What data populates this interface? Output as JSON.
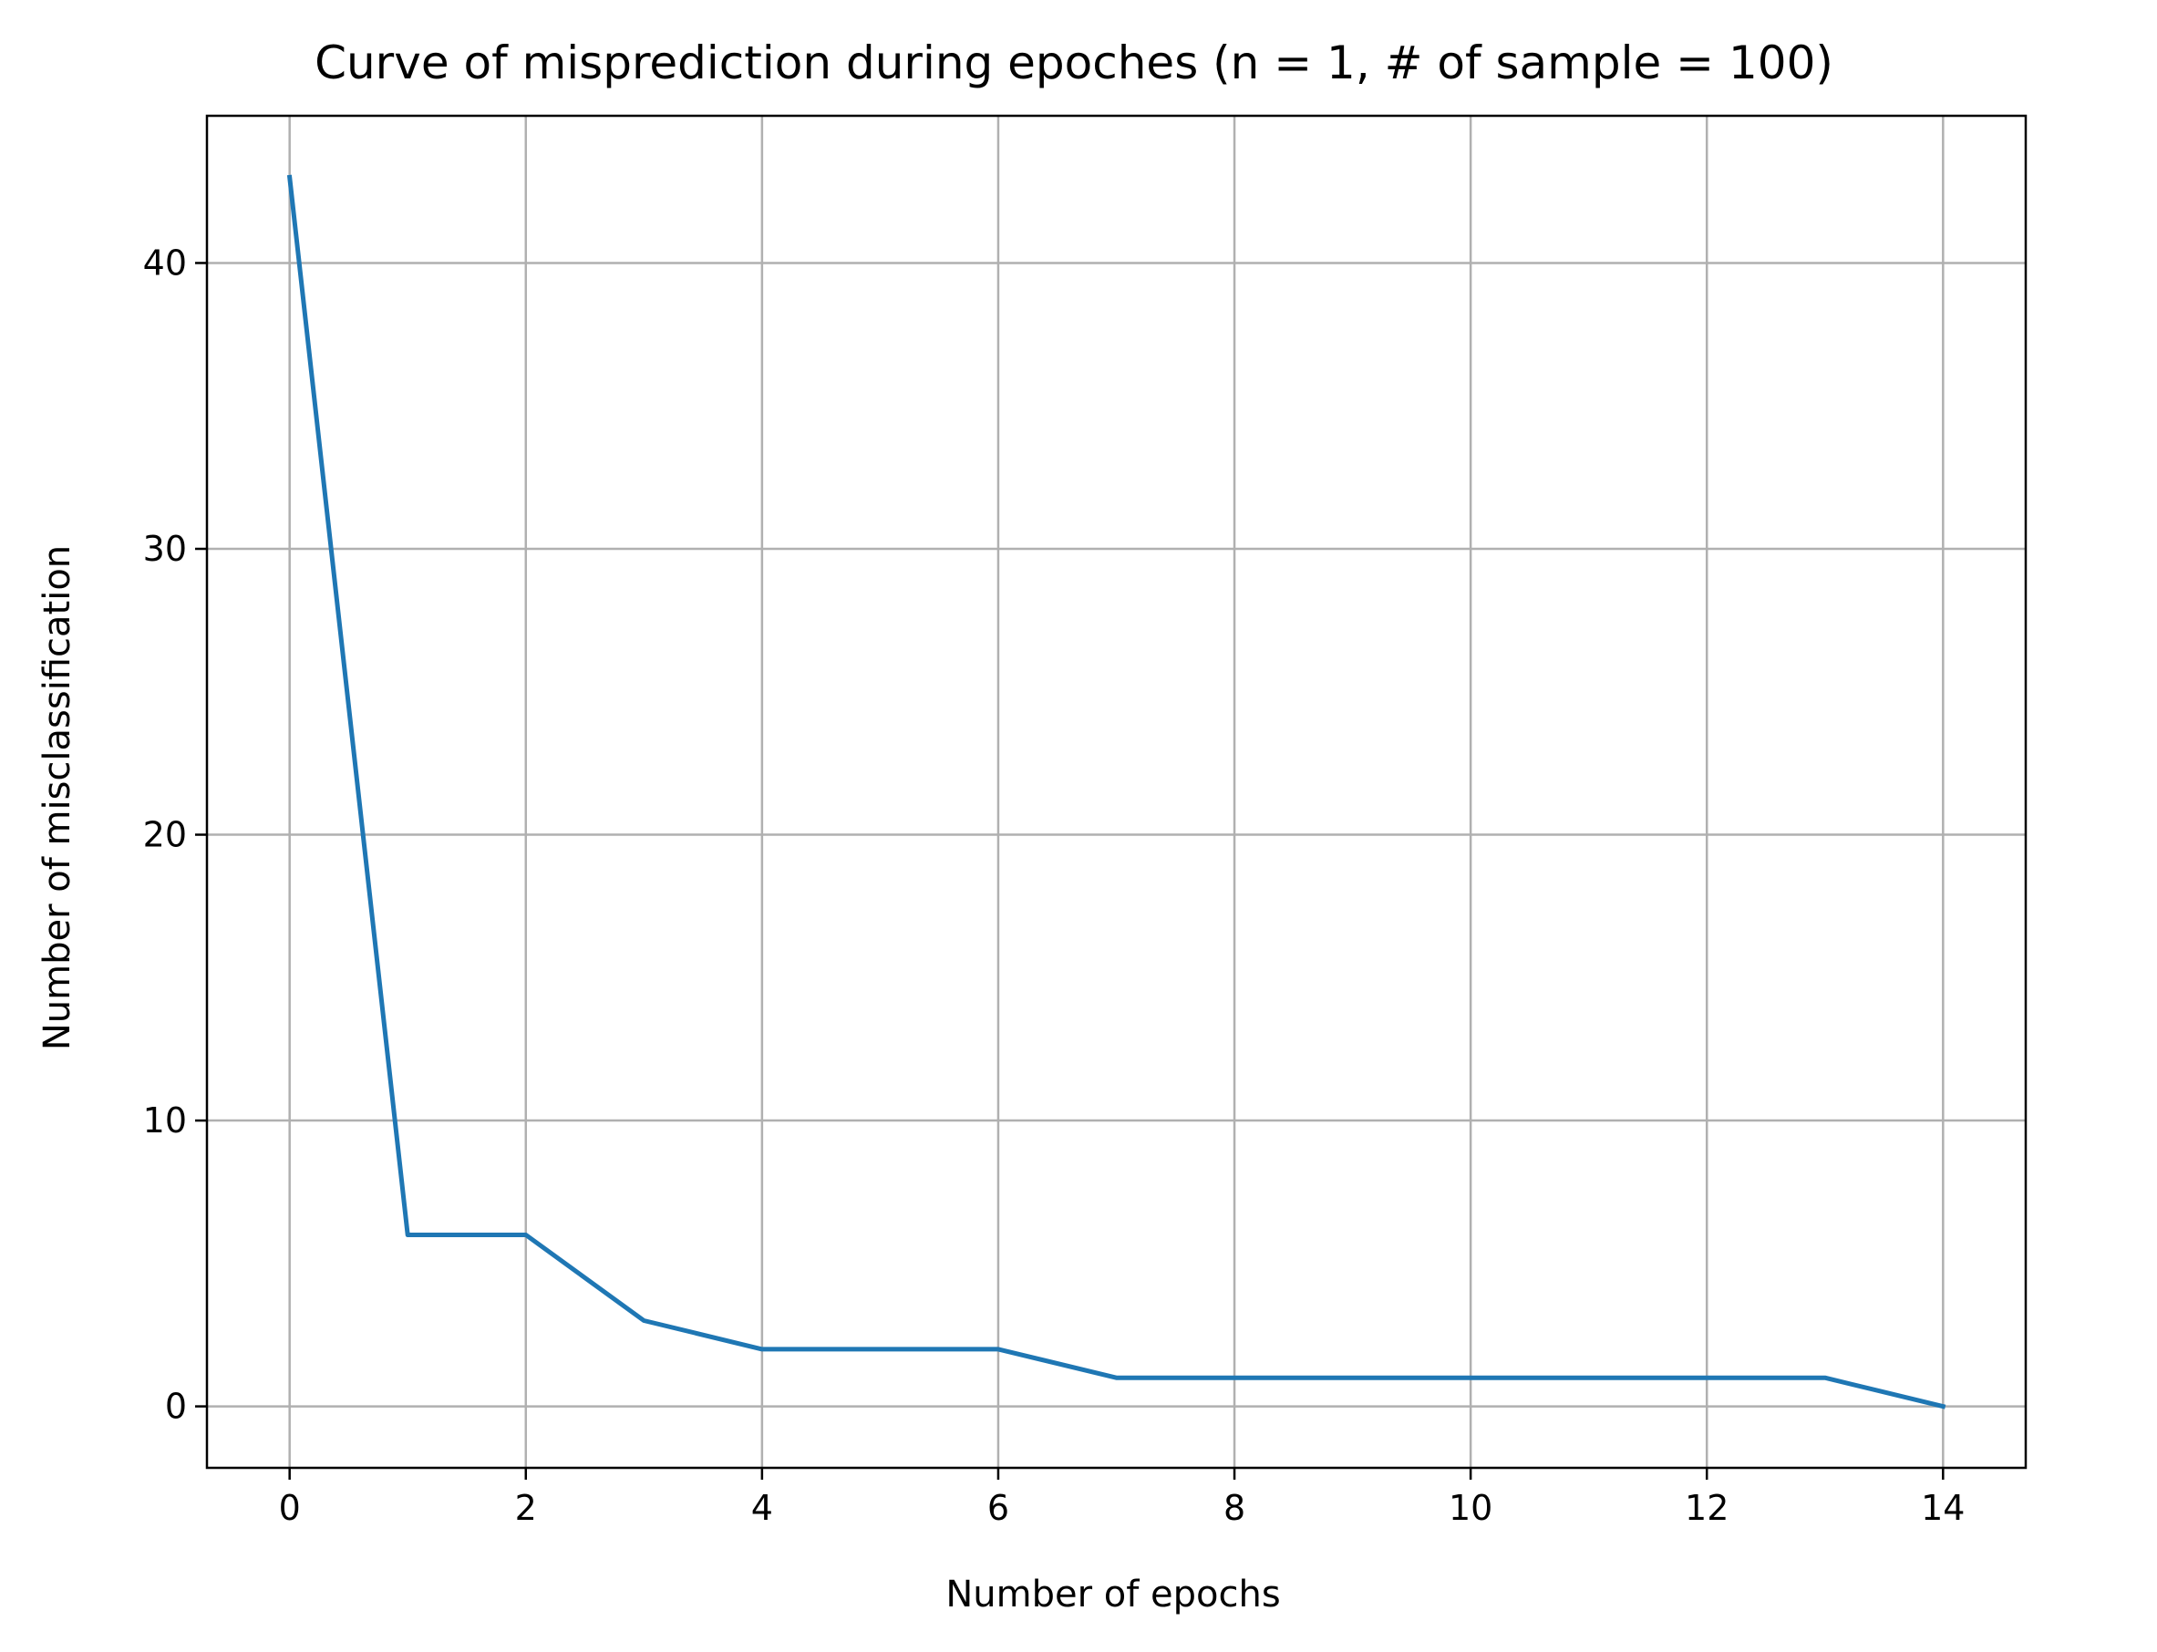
{
  "chart_data": {
    "type": "line",
    "title": "Curve of misprediction during epoches (n = 1, # of sample = 100)",
    "xlabel": "Number of epochs",
    "ylabel": "Number of misclassification",
    "xlim": [
      -0.7,
      14.7
    ],
    "ylim": [
      -2.15,
      45.15
    ],
    "xticks": [
      0,
      2,
      4,
      6,
      8,
      10,
      12,
      14
    ],
    "yticks": [
      0,
      10,
      20,
      30,
      40
    ],
    "grid": true,
    "series": [
      {
        "color": "#1f77b4",
        "x": [
          0,
          1,
          2,
          3,
          4,
          5,
          6,
          7,
          8,
          9,
          10,
          11,
          12,
          13,
          14
        ],
        "y": [
          43,
          6,
          6,
          3,
          2,
          2,
          2,
          1,
          1,
          1,
          1,
          1,
          1,
          1,
          0
        ]
      }
    ]
  },
  "colors": {
    "grid": "#b0b0b0",
    "axes": "#000000",
    "line": "#1f77b4"
  }
}
